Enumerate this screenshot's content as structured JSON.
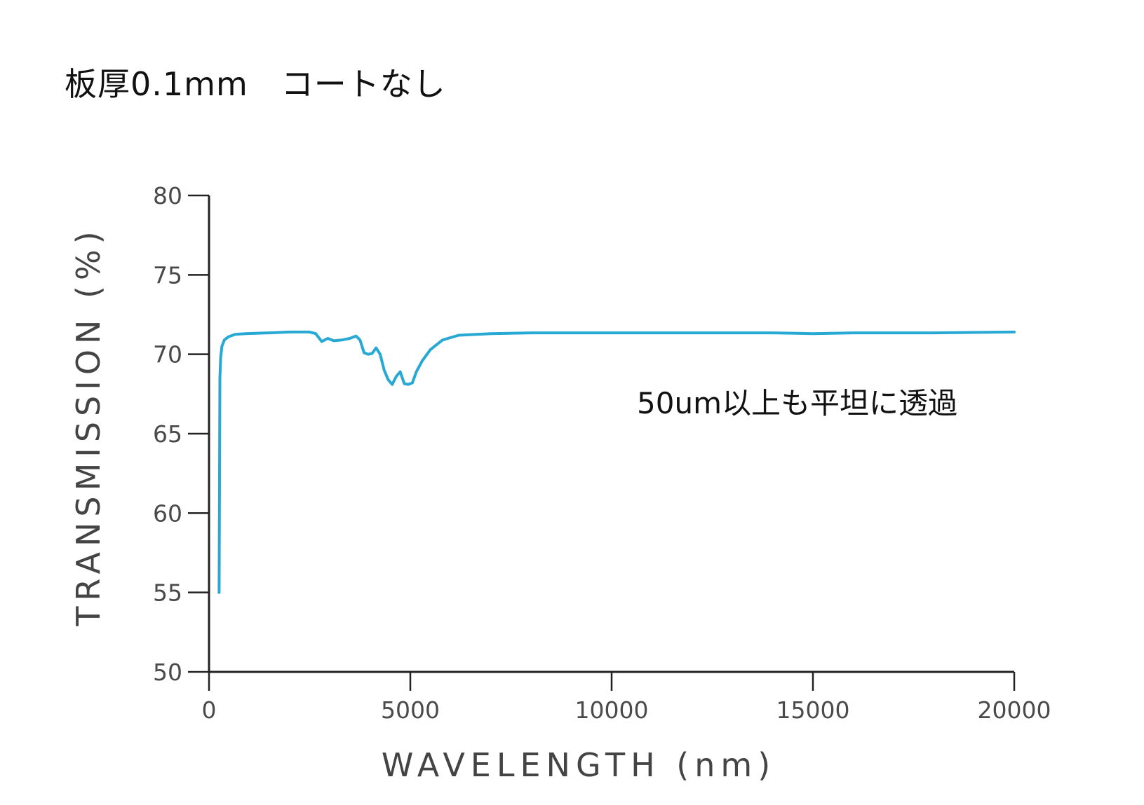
{
  "header": {
    "title": "板厚0.1mm　コートなし"
  },
  "chart_data": {
    "type": "line",
    "title": "板厚0.1mm　コートなし",
    "xlabel": "WAVELENGTH (nm)",
    "ylabel": "TRANSMISSION (%)",
    "xlim": [
      0,
      20000
    ],
    "ylim": [
      50,
      80
    ],
    "xticks": [
      0,
      5000,
      10000,
      15000,
      20000
    ],
    "yticks": [
      50,
      55,
      60,
      65,
      70,
      75,
      80
    ],
    "grid": false,
    "line_color": "#27a9d3",
    "annotation": "50um以上も平坦に透過",
    "series": [
      {
        "x": [
          250,
          260,
          270,
          290,
          320,
          380,
          480,
          650,
          900,
          1500,
          2000,
          2500,
          2650,
          2800,
          2950,
          3100,
          3300,
          3500,
          3650,
          3750,
          3850,
          3950,
          4050,
          4150,
          4250,
          4350,
          4450,
          4550,
          4650,
          4750,
          4850,
          4950,
          5050,
          5150,
          5300,
          5500,
          5800,
          6200,
          7000,
          8000,
          10000,
          12000,
          14000,
          15000,
          16000,
          18000,
          20000
        ],
        "y": [
          55.0,
          61.0,
          68.5,
          69.8,
          70.5,
          70.9,
          71.1,
          71.25,
          71.3,
          71.35,
          71.4,
          71.4,
          71.3,
          70.8,
          71.0,
          70.85,
          70.9,
          71.0,
          71.15,
          70.9,
          70.1,
          70.0,
          70.05,
          70.4,
          70.0,
          69.0,
          68.4,
          68.1,
          68.6,
          68.9,
          68.15,
          68.1,
          68.2,
          68.9,
          69.6,
          70.3,
          70.9,
          71.2,
          71.3,
          71.35,
          71.35,
          71.35,
          71.35,
          71.3,
          71.35,
          71.35,
          71.4
        ]
      }
    ]
  }
}
